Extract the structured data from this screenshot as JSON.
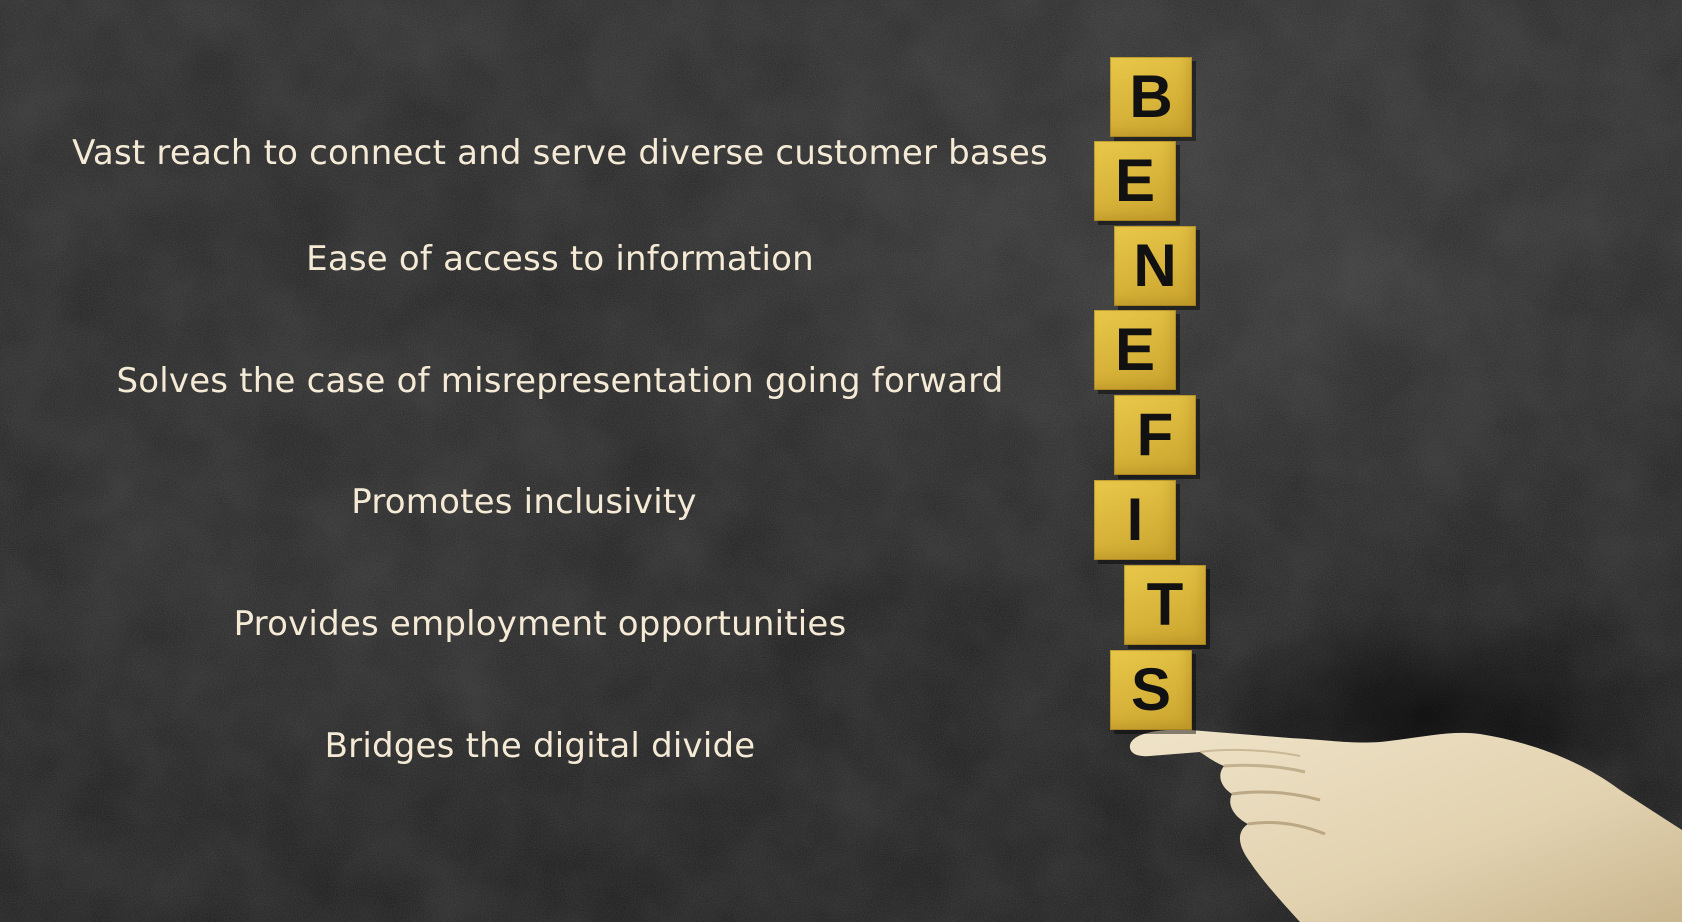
{
  "benefits": [
    "Vast reach to connect and serve diverse customer bases",
    "Ease of access to information",
    "Solves the case of misrepresentation going forward",
    "Promotes inclusivity",
    "Provides employment opportunities",
    "Bridges the digital divide"
  ],
  "tiles": [
    "B",
    "E",
    "N",
    "E",
    "F",
    "I",
    "T",
    "S"
  ],
  "colors": {
    "background": "#1e1e1e",
    "text": "#f4ead6",
    "tile": "#dcb83c",
    "tile_letter": "#111111",
    "hand": "#e9dcc0"
  }
}
